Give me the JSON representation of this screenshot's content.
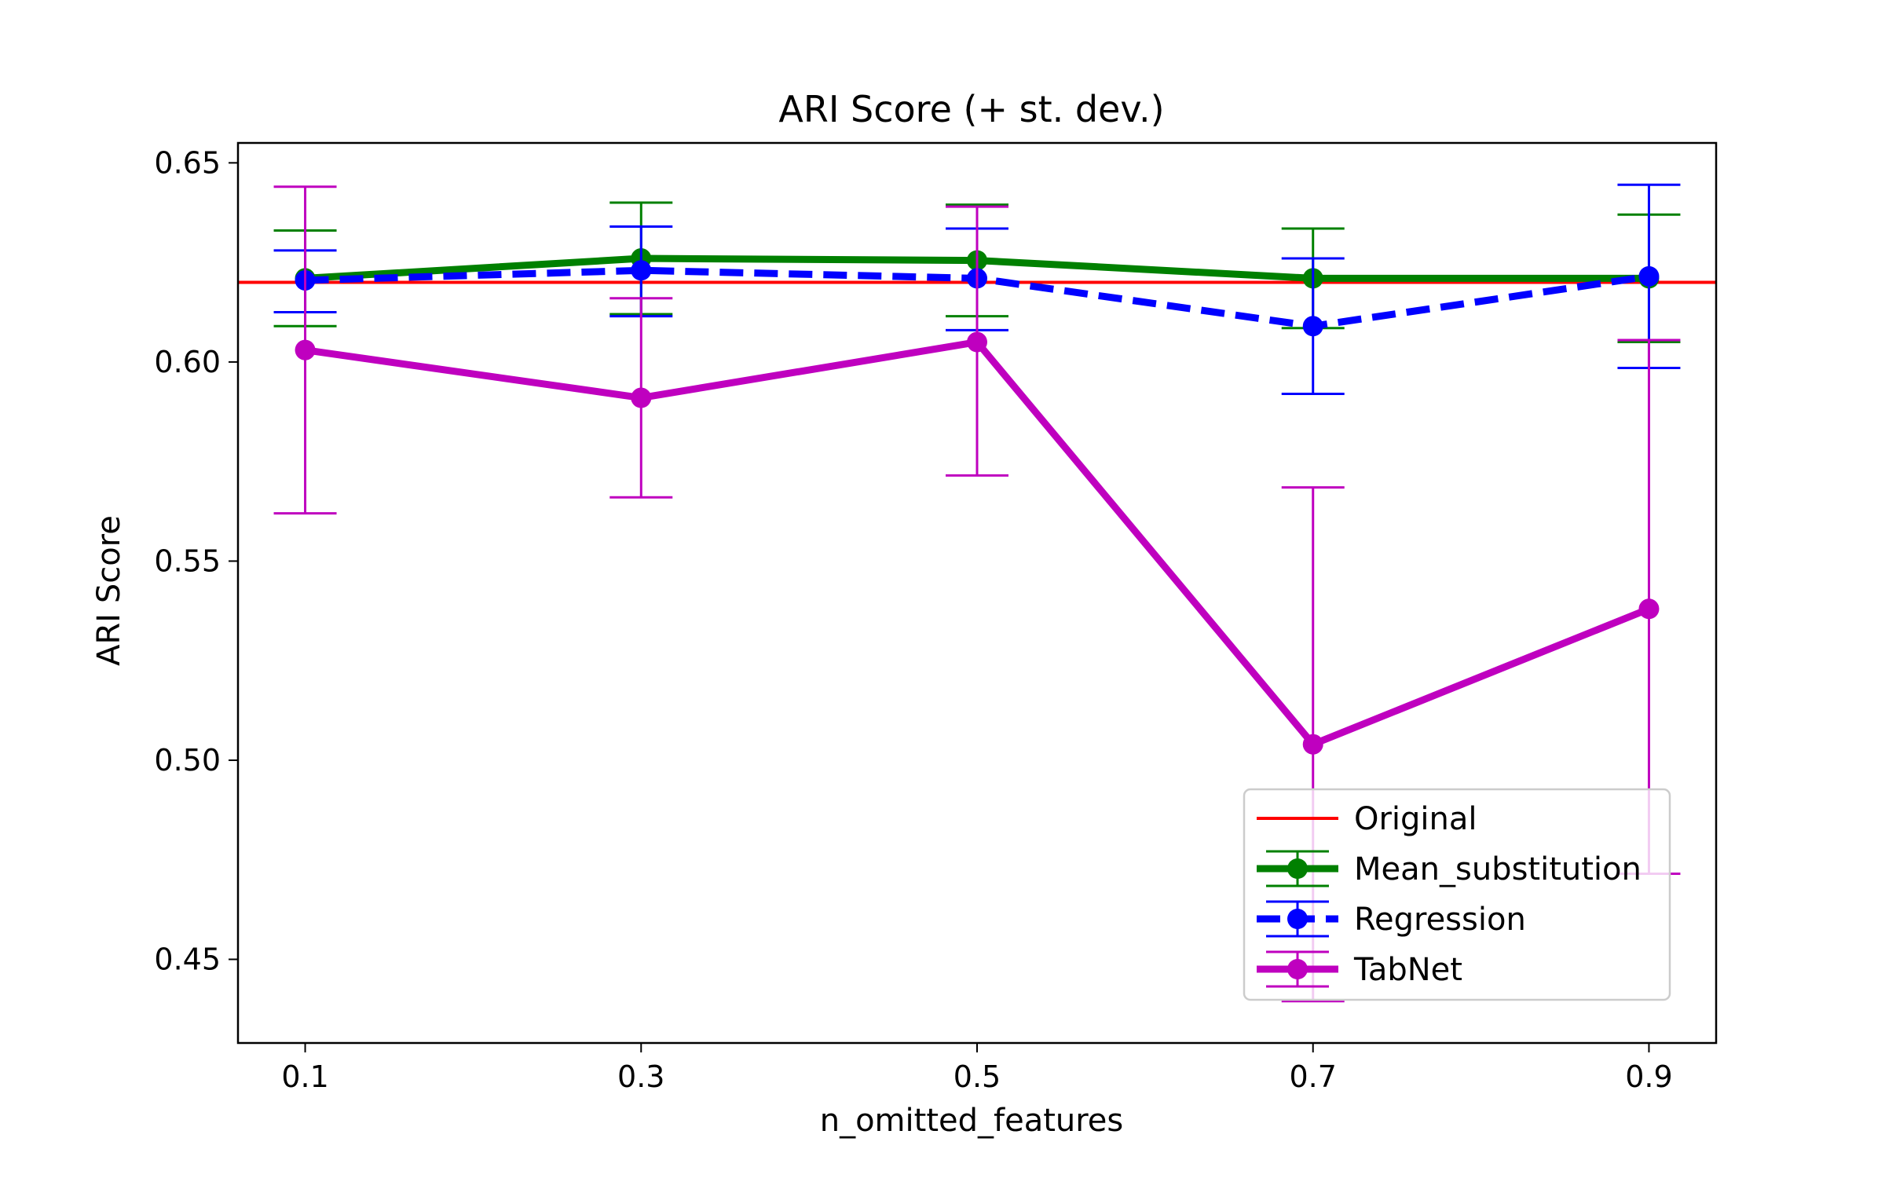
{
  "chart_data": {
    "type": "line",
    "title": "ARI Score (+ st. dev.)",
    "xlabel": "n_omitted_features",
    "ylabel": "ARI Score",
    "x": [
      0.1,
      0.3,
      0.5,
      0.7,
      0.9
    ],
    "x_tick_labels": [
      "0.1",
      "0.3",
      "0.5",
      "0.7",
      "0.9"
    ],
    "xlim": [
      0.06,
      0.94
    ],
    "ylim": [
      0.429,
      0.655
    ],
    "y_ticks": [
      0.45,
      0.5,
      0.55,
      0.6,
      0.65
    ],
    "y_tick_labels": [
      "0.45",
      "0.50",
      "0.55",
      "0.60",
      "0.65"
    ],
    "reference_line": {
      "name": "Original",
      "value": 0.62,
      "color": "#ff0000"
    },
    "series": [
      {
        "name": "Mean_substitution",
        "color": "#008000",
        "style": "solid",
        "values": [
          0.621,
          0.626,
          0.6255,
          0.621,
          0.621
        ],
        "error_upper": [
          0.633,
          0.64,
          0.6395,
          0.6335,
          0.637
        ],
        "error_lower": [
          0.609,
          0.612,
          0.6115,
          0.6085,
          0.605
        ]
      },
      {
        "name": "Regression",
        "color": "#0000ff",
        "style": "dashed",
        "values": [
          0.6205,
          0.623,
          0.621,
          0.609,
          0.6215
        ],
        "error_upper": [
          0.628,
          0.634,
          0.6335,
          0.626,
          0.6445
        ],
        "error_lower": [
          0.6125,
          0.6115,
          0.608,
          0.592,
          0.5985
        ]
      },
      {
        "name": "TabNet",
        "color": "#bf00bf",
        "style": "solid",
        "values": [
          0.603,
          0.591,
          0.605,
          0.504,
          0.538
        ],
        "error_upper": [
          0.644,
          0.616,
          0.639,
          0.5685,
          0.6055
        ],
        "error_lower": [
          0.562,
          0.566,
          0.5715,
          0.4395,
          0.4715
        ]
      }
    ],
    "grid": false,
    "legend_position": "bottom-right"
  }
}
